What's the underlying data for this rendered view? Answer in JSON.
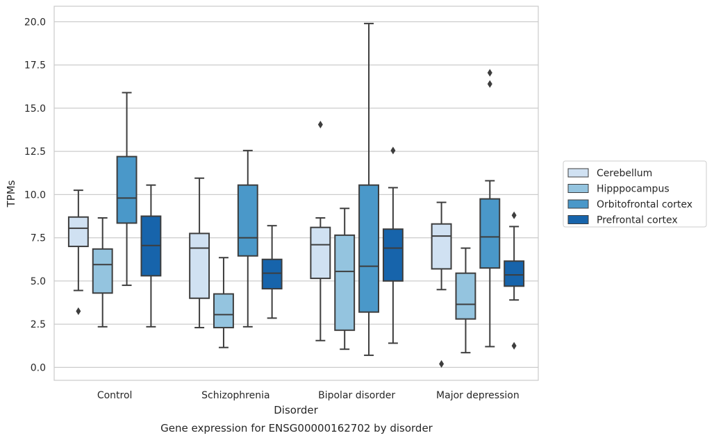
{
  "chart_data": {
    "type": "box",
    "caption": "Gene expression for ENSG00000162702 by disorder",
    "xlabel": "Disorder",
    "ylabel": "TPMs",
    "ylim": [
      -0.75,
      20.9
    ],
    "yticks": [
      "0.0",
      "2.5",
      "5.0",
      "7.5",
      "10.0",
      "12.5",
      "15.0",
      "17.5",
      "20.0"
    ],
    "grid": "horizontal",
    "legend_position": "right",
    "categories": [
      "Control",
      "Schizophrenia",
      "Bipolar disorder",
      "Major depression"
    ],
    "series": [
      {
        "name": "Cerebellum",
        "color": "#d0e1f2",
        "boxes": [
          {
            "whislo": 4.45,
            "q1": 7.0,
            "med": 8.05,
            "q3": 8.7,
            "whishi": 10.25,
            "fliers": [
              3.25
            ]
          },
          {
            "whislo": 2.3,
            "q1": 4.0,
            "med": 6.9,
            "q3": 7.75,
            "whishi": 10.95,
            "fliers": []
          },
          {
            "whislo": 1.55,
            "q1": 5.15,
            "med": 7.1,
            "q3": 8.1,
            "whishi": 8.65,
            "fliers": [
              14.05
            ]
          },
          {
            "whislo": 4.5,
            "q1": 5.7,
            "med": 7.6,
            "q3": 8.3,
            "whishi": 9.55,
            "fliers": [
              0.2
            ]
          }
        ]
      },
      {
        "name": "Hipppocampus",
        "color": "#94c4df",
        "boxes": [
          {
            "whislo": 2.35,
            "q1": 4.3,
            "med": 5.95,
            "q3": 6.85,
            "whishi": 8.65,
            "fliers": []
          },
          {
            "whislo": 1.15,
            "q1": 2.3,
            "med": 3.05,
            "q3": 4.25,
            "whishi": 6.35,
            "fliers": []
          },
          {
            "whislo": 1.05,
            "q1": 2.15,
            "med": 5.55,
            "q3": 7.65,
            "whishi": 9.2,
            "fliers": []
          },
          {
            "whislo": 0.85,
            "q1": 2.8,
            "med": 3.65,
            "q3": 5.45,
            "whishi": 6.9,
            "fliers": []
          }
        ]
      },
      {
        "name": "Orbitofrontal cortex",
        "color": "#4a98c9",
        "boxes": [
          {
            "whislo": 4.75,
            "q1": 8.35,
            "med": 9.8,
            "q3": 12.2,
            "whishi": 15.9,
            "fliers": []
          },
          {
            "whislo": 2.35,
            "q1": 6.45,
            "med": 7.5,
            "q3": 10.55,
            "whishi": 12.55,
            "fliers": []
          },
          {
            "whislo": 0.7,
            "q1": 3.2,
            "med": 5.85,
            "q3": 10.55,
            "whishi": 19.9,
            "fliers": []
          },
          {
            "whislo": 1.2,
            "q1": 5.75,
            "med": 7.55,
            "q3": 9.75,
            "whishi": 10.8,
            "fliers": [
              16.4,
              17.05
            ]
          }
        ]
      },
      {
        "name": "Prefrontal cortex",
        "color": "#1764ab",
        "boxes": [
          {
            "whislo": 2.35,
            "q1": 5.3,
            "med": 7.05,
            "q3": 8.75,
            "whishi": 10.55,
            "fliers": []
          },
          {
            "whislo": 2.85,
            "q1": 4.55,
            "med": 5.45,
            "q3": 6.25,
            "whishi": 8.2,
            "fliers": []
          },
          {
            "whislo": 1.4,
            "q1": 5.0,
            "med": 6.9,
            "q3": 8.0,
            "whishi": 10.4,
            "fliers": [
              12.55
            ]
          },
          {
            "whislo": 3.9,
            "q1": 4.7,
            "med": 5.35,
            "q3": 6.15,
            "whishi": 8.15,
            "fliers": [
              1.25,
              8.8
            ]
          }
        ]
      }
    ]
  }
}
